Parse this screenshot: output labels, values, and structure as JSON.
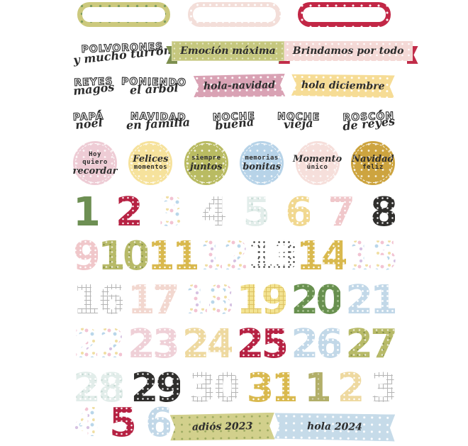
{
  "sheet": {
    "background": "#ffffff",
    "theme": "christmas-advent-sticker-sheet"
  },
  "colors": {
    "olive": "#ccc97d",
    "crimson": "#c22746",
    "pale_pink": "#f3ded9",
    "banner_green": "#c5c77e",
    "banner_pink": "#f4d9d6",
    "tape_rose": "#d9a2b4",
    "tape_yellow": "#f6dc95",
    "tape_olive": "#d2d08c",
    "tape_blue": "#c6dbe9",
    "number_green": "#6d8f53",
    "number_crimson": "#b62243",
    "number_gold": "#d9b94e",
    "number_black": "#2f2e2c",
    "number_blue": "#c2d8e8"
  },
  "top_labels": [
    {
      "style": "olive",
      "pattern": "stars"
    },
    {
      "style": "pink",
      "pattern": "dots"
    },
    {
      "style": "crimson",
      "pattern": "stars"
    }
  ],
  "phrase_rows": {
    "row2": {
      "outline": [
        {
          "caps": "POLVORONES",
          "script": "y mucho turrón"
        }
      ],
      "banners": [
        {
          "text": "Emoción máxima",
          "style": "green"
        },
        {
          "text": "Brindamos por todo",
          "style": "pink"
        }
      ]
    },
    "row3": {
      "outline": [
        {
          "caps": "REYES",
          "script": "magos"
        },
        {
          "caps": "PONIENDO",
          "script": "el árbol"
        }
      ],
      "tapes": [
        {
          "text": "hola-navidad",
          "style": "rose"
        },
        {
          "text": "hola diciembre",
          "style": "yellow"
        }
      ]
    },
    "row4": {
      "outline": [
        {
          "caps": "PAPÁ",
          "script": "noel"
        },
        {
          "caps": "NAVIDAD",
          "script": "en familia"
        },
        {
          "caps": "NOCHE",
          "script": "buena"
        },
        {
          "caps": "NOCHE",
          "script": "vieja"
        },
        {
          "caps": "ROSCÓN",
          "script": "de reyes"
        }
      ]
    }
  },
  "round_stickers": [
    {
      "style": "pink",
      "lines": [
        {
          "t": "Hoy",
          "f": "type"
        },
        {
          "t": "quiero",
          "f": "type"
        },
        {
          "t": "recordar",
          "f": "script"
        }
      ]
    },
    {
      "style": "yellow",
      "lines": [
        {
          "t": "Felices",
          "f": "script"
        },
        {
          "t": "momentos",
          "f": "type"
        }
      ]
    },
    {
      "style": "olive",
      "lines": [
        {
          "t": "siempre",
          "f": "type"
        },
        {
          "t": "juntos",
          "f": "script"
        }
      ]
    },
    {
      "style": "blue",
      "lines": [
        {
          "t": "memorias",
          "f": "type"
        },
        {
          "t": "bonitas",
          "f": "script"
        }
      ]
    },
    {
      "style": "blush",
      "lines": [
        {
          "t": "Momento",
          "f": "script"
        },
        {
          "t": "único",
          "f": "type"
        }
      ]
    },
    {
      "style": "gold",
      "lines": [
        {
          "t": "Navidad",
          "f": "script"
        },
        {
          "t": "feliz",
          "f": "type"
        }
      ]
    }
  ],
  "number_rows": [
    [
      {
        "v": "1",
        "s": "green"
      },
      {
        "v": "2",
        "s": "crimson"
      },
      {
        "v": "3",
        "s": "confetti"
      },
      {
        "v": "4",
        "s": "grid"
      },
      {
        "v": "5",
        "s": "mint"
      },
      {
        "v": "6",
        "s": "yellow"
      },
      {
        "v": "7",
        "s": "pink"
      },
      {
        "v": "8",
        "s": "black"
      }
    ],
    [
      {
        "v": "9",
        "s": "pink"
      },
      {
        "v": "10",
        "s": "olive"
      },
      {
        "v": "11",
        "s": "gold"
      },
      {
        "v": "12",
        "s": "confetti"
      },
      {
        "v": "13",
        "s": "dalmatian"
      },
      {
        "v": "14",
        "s": "gold"
      },
      {
        "v": "15",
        "s": "confetti"
      }
    ],
    [
      {
        "v": "16",
        "s": "grid"
      },
      {
        "v": "17",
        "s": "blush"
      },
      {
        "v": "18",
        "s": "confetti"
      },
      {
        "v": "19",
        "s": "yellowgrid"
      },
      {
        "v": "20",
        "s": "forest"
      },
      {
        "v": "21",
        "s": "blue"
      }
    ],
    [
      {
        "v": "22",
        "s": "confetti"
      },
      {
        "v": "23",
        "s": "rosepale"
      },
      {
        "v": "24",
        "s": "palegold"
      },
      {
        "v": "25",
        "s": "crimson"
      },
      {
        "v": "26",
        "s": "blue"
      },
      {
        "v": "27",
        "s": "olive"
      }
    ],
    [
      {
        "v": "28",
        "s": "mint"
      },
      {
        "v": "29",
        "s": "black"
      },
      {
        "v": "30",
        "s": "grid"
      },
      {
        "v": "31",
        "s": "gold"
      },
      {
        "v": "1",
        "s": "khaki"
      },
      {
        "v": "2",
        "s": "palegold"
      },
      {
        "v": "3",
        "s": "grid"
      }
    ],
    [
      {
        "v": "4",
        "s": "confetti"
      },
      {
        "v": "5",
        "s": "crimson"
      },
      {
        "v": "6",
        "s": "blue"
      }
    ]
  ],
  "bottom_banners": [
    {
      "text": "adiós 2023",
      "style": "olive"
    },
    {
      "text": "hola 2024",
      "style": "blue"
    }
  ]
}
